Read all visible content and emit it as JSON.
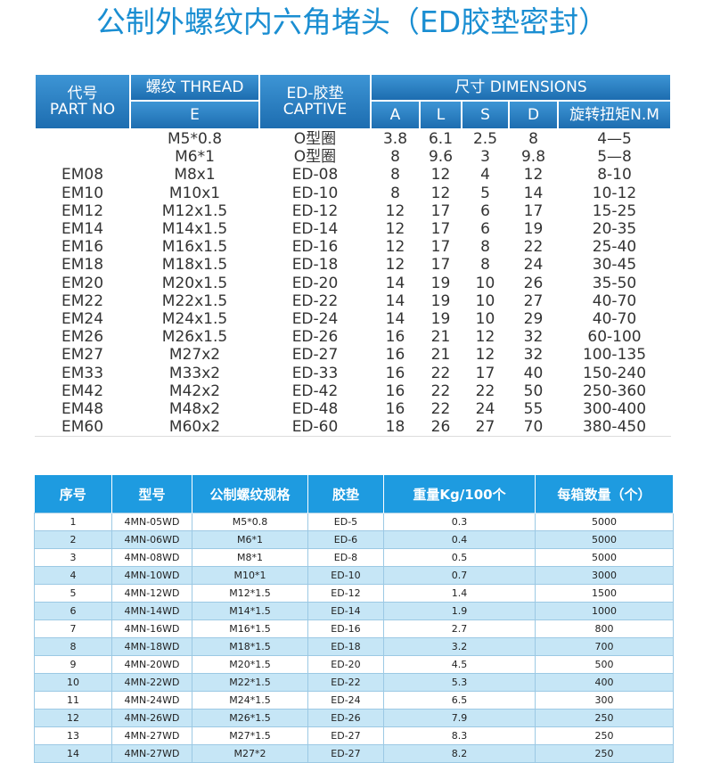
{
  "title": "公制外螺纹内六角堵头（ED胶垫密封）",
  "table1": {
    "headers": {
      "part_cn": "代号",
      "part_en": "PART NO",
      "thread": "螺纹 THREAD",
      "thread_sub": "E",
      "captive_cn": "ED-胶垫",
      "captive_en": "CAPTIVE",
      "dimensions": "尺寸 DIMENSIONS",
      "dims": [
        "A",
        "L",
        "S",
        "D",
        "旋转扭矩N.M"
      ]
    },
    "rows": [
      [
        null,
        "M5*0.8",
        "O型圈",
        "3.8",
        "6.1",
        "2.5",
        "8",
        "4—5"
      ],
      [
        null,
        "M6*1",
        "O型圈",
        "8",
        "9.6",
        "3",
        "9.8",
        "5—8"
      ],
      [
        "EM08",
        "M8x1",
        "ED-08",
        "8",
        "12",
        "4",
        "12",
        "8-10"
      ],
      [
        "EM10",
        "M10x1",
        "ED-10",
        "8",
        "12",
        "5",
        "14",
        "10-12"
      ],
      [
        "EM12",
        "M12x1.5",
        "ED-12",
        "12",
        "17",
        "6",
        "17",
        "15-25"
      ],
      [
        "EM14",
        "M14x1.5",
        "ED-14",
        "12",
        "17",
        "6",
        "19",
        "20-35"
      ],
      [
        "EM16",
        "M16x1.5",
        "ED-16",
        "12",
        "17",
        "8",
        "22",
        "25-40"
      ],
      [
        "EM18",
        "M18x1.5",
        "ED-18",
        "12",
        "17",
        "8",
        "24",
        "30-45"
      ],
      [
        "EM20",
        "M20x1.5",
        "ED-20",
        "14",
        "19",
        "10",
        "26",
        "35-50"
      ],
      [
        "EM22",
        "M22x1.5",
        "ED-22",
        "14",
        "19",
        "10",
        "27",
        "40-70"
      ],
      [
        "EM24",
        "M24x1.5",
        "ED-24",
        "14",
        "19",
        "10",
        "29",
        "40-70"
      ],
      [
        "EM26",
        "M26x1.5",
        "ED-26",
        "16",
        "21",
        "12",
        "32",
        "60-100"
      ],
      [
        "EM27",
        "M27x2",
        "ED-27",
        "16",
        "21",
        "12",
        "32",
        "100-135"
      ],
      [
        "EM33",
        "M33x2",
        "ED-33",
        "16",
        "22",
        "17",
        "40",
        "150-240"
      ],
      [
        "EM42",
        "M42x2",
        "ED-42",
        "16",
        "22",
        "22",
        "50",
        "250-360"
      ],
      [
        "EM48",
        "M48x2",
        "ED-48",
        "16",
        "22",
        "24",
        "55",
        "300-400"
      ],
      [
        "EM60",
        "M60x2",
        "ED-60",
        "18",
        "26",
        "27",
        "70",
        "380-450"
      ]
    ]
  },
  "table2": {
    "headers": [
      "序号",
      "型号",
      "公制螺纹规格",
      "胶垫",
      "重量Kg/100个",
      "每箱数量（个）"
    ],
    "rows": [
      [
        "1",
        "4MN-05WD",
        "M5*0.8",
        "ED-5",
        "0.3",
        "5000"
      ],
      [
        "2",
        "4MN-06WD",
        "M6*1",
        "ED-6",
        "0.4",
        "5000"
      ],
      [
        "3",
        "4MN-08WD",
        "M8*1",
        "ED-8",
        "0.5",
        "5000"
      ],
      [
        "4",
        "4MN-10WD",
        "M10*1",
        "ED-10",
        "0.7",
        "3000"
      ],
      [
        "5",
        "4MN-12WD",
        "M12*1.5",
        "ED-12",
        "1.4",
        "1500"
      ],
      [
        "6",
        "4MN-14WD",
        "M14*1.5",
        "ED-14",
        "1.9",
        "1000"
      ],
      [
        "7",
        "4MN-16WD",
        "M16*1.5",
        "ED-16",
        "2.7",
        "800"
      ],
      [
        "8",
        "4MN-18WD",
        "M18*1.5",
        "ED-18",
        "3.2",
        "700"
      ],
      [
        "9",
        "4MN-20WD",
        "M20*1.5",
        "ED-20",
        "4.5",
        "500"
      ],
      [
        "10",
        "4MN-22WD",
        "M22*1.5",
        "ED-22",
        "5.3",
        "400"
      ],
      [
        "11",
        "4MN-24WD",
        "M24*1.5",
        "ED-24",
        "6.5",
        "300"
      ],
      [
        "12",
        "4MN-26WD",
        "M26*1.5",
        "ED-26",
        "7.9",
        "250"
      ],
      [
        "13",
        "4MN-27WD",
        "M27*1.5",
        "ED-27",
        "8.3",
        "250"
      ],
      [
        "14",
        "4MN-27WD",
        "M27*2",
        "ED-27",
        "8.2",
        "250"
      ]
    ]
  }
}
